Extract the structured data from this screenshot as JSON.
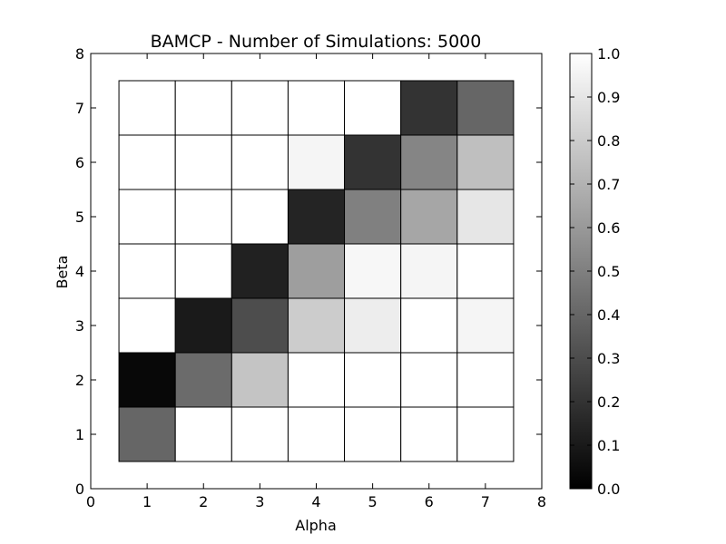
{
  "chart_data": {
    "type": "heatmap",
    "title": "BAMCP - Number of Simulations: 5000",
    "xlabel": "Alpha",
    "ylabel": "Beta",
    "xlim": [
      0,
      8
    ],
    "ylim": [
      0,
      8
    ],
    "x_ticks": [
      "0",
      "1",
      "2",
      "3",
      "4",
      "5",
      "6",
      "7",
      "8"
    ],
    "y_ticks": [
      "0",
      "1",
      "2",
      "3",
      "4",
      "5",
      "6",
      "7",
      "8"
    ],
    "x": [
      1,
      2,
      3,
      4,
      5,
      6,
      7
    ],
    "y": [
      1,
      2,
      3,
      4,
      5,
      6,
      7
    ],
    "colormap": "gray",
    "color_range": [
      0.0,
      1.0
    ],
    "colorbar_ticks": [
      "0.0",
      "0.1",
      "0.2",
      "0.3",
      "0.4",
      "0.5",
      "0.6",
      "0.7",
      "0.8",
      "0.9",
      "1.0"
    ],
    "values": [
      [
        0.4,
        1.0,
        1.0,
        1.0,
        1.0,
        1.0,
        1.0
      ],
      [
        0.03,
        0.42,
        0.77,
        1.0,
        1.0,
        1.0,
        1.0
      ],
      [
        1.0,
        0.1,
        0.3,
        0.8,
        0.93,
        1.0,
        0.96
      ],
      [
        1.0,
        1.0,
        0.13,
        0.62,
        0.97,
        0.96,
        1.0
      ],
      [
        1.0,
        1.0,
        1.0,
        0.14,
        0.5,
        0.65,
        0.9
      ],
      [
        1.0,
        1.0,
        1.0,
        0.96,
        0.2,
        0.52,
        0.75
      ],
      [
        1.0,
        1.0,
        1.0,
        1.0,
        1.0,
        0.2,
        0.4
      ]
    ],
    "grid": false
  }
}
